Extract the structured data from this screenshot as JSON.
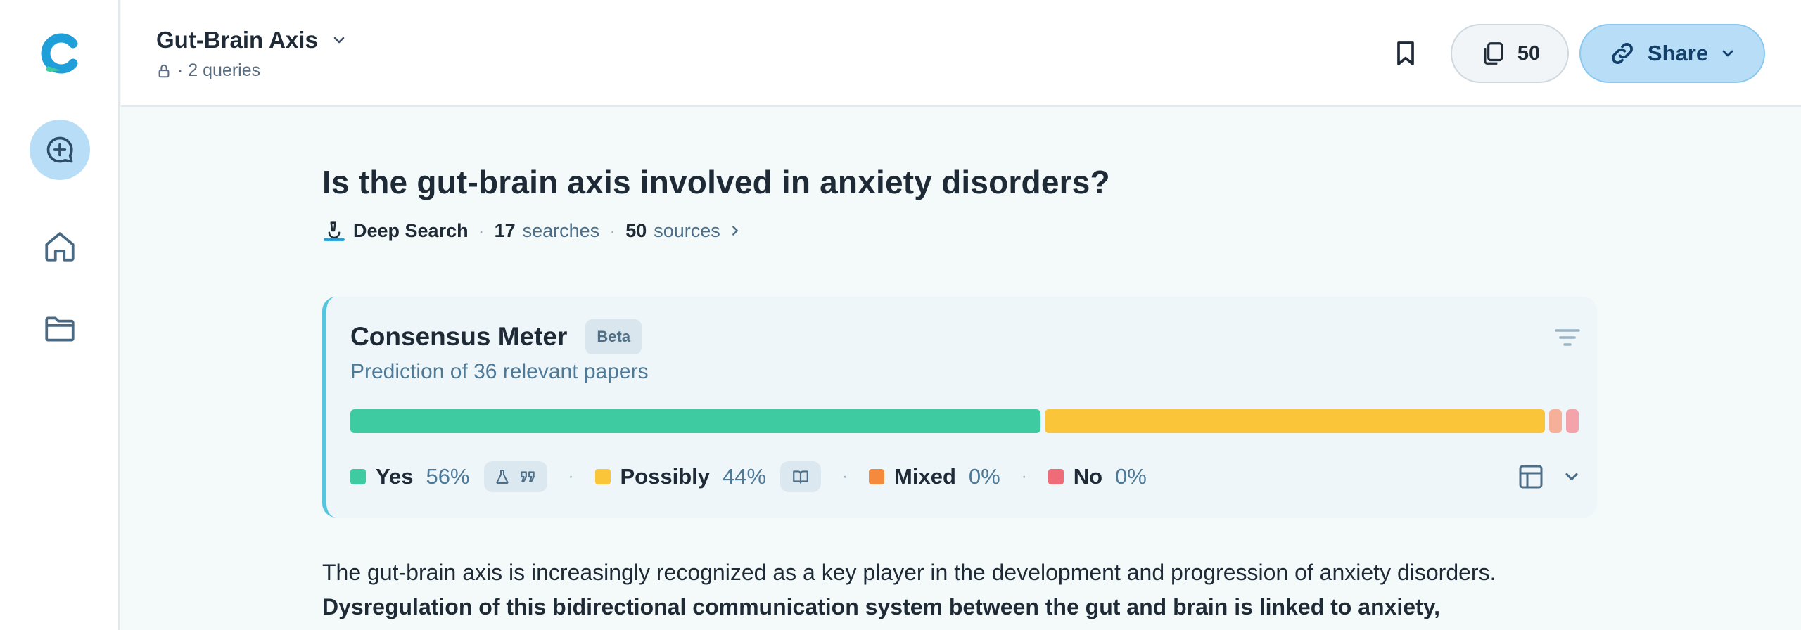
{
  "sidebar": {
    "logo_icon": "consensus-logo",
    "items": [
      {
        "name": "new-thread",
        "icon": "chat-plus-icon"
      },
      {
        "name": "home",
        "icon": "home-icon"
      },
      {
        "name": "folders",
        "icon": "folder-icon"
      }
    ]
  },
  "header": {
    "project_title": "Gut-Brain Axis",
    "project_sub": "· 2 queries",
    "sources_count": "50",
    "share_label": "Share"
  },
  "question": {
    "title": "Is the gut-brain axis involved in anxiety disorders?",
    "mode": "Deep Search",
    "searches_count": "17",
    "searches_label": "searches",
    "sources_count": "50",
    "sources_label": "sources"
  },
  "consensus": {
    "title": "Consensus Meter",
    "badge": "Beta",
    "subtitle": "Prediction of 36 relevant papers",
    "categories": [
      {
        "label": "Yes",
        "pct": "56%",
        "value": 56,
        "color": "#3ecba1"
      },
      {
        "label": "Possibly",
        "pct": "44%",
        "value": 44,
        "color": "#fbc53a"
      },
      {
        "label": "Mixed",
        "pct": "0%",
        "value": 0,
        "color": "#f58a3c"
      },
      {
        "label": "No",
        "pct": "0%",
        "value": 0,
        "color": "#ef6b78"
      }
    ]
  },
  "answer": {
    "intro": "The gut-brain axis is increasingly recognized as a key player in the development and progression of anxiety disorders.",
    "bold": "Dysregulation of this bidirectional communication system between the gut and brain is linked to anxiety,"
  },
  "colors": {
    "accent": "#b8ddf7",
    "yes": "#3ecba1",
    "possibly": "#fbc53a",
    "mixed": "#f58a3c",
    "no": "#ef6b78"
  }
}
